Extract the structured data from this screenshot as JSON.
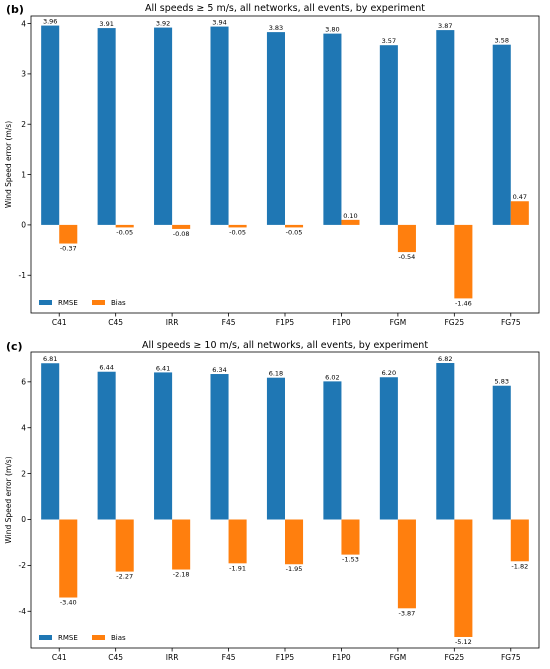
{
  "colors": {
    "rmse": "#1f77b4",
    "bias": "#ff7f0e"
  },
  "chart_data": [
    {
      "type": "bar",
      "panel_label": "(b)",
      "title": "All speeds ≥ 5 m/s, all networks, all events, by experiment",
      "ylabel": "Wind Speed error (m/s)",
      "xlabel": "",
      "categories": [
        "C41",
        "C45",
        "IRR",
        "F45",
        "F1P5",
        "F1P0",
        "FGM",
        "FG25",
        "FG75"
      ],
      "series": [
        {
          "name": "RMSE",
          "values": [
            3.96,
            3.91,
            3.92,
            3.94,
            3.83,
            3.8,
            3.57,
            3.87,
            3.58
          ],
          "labels": [
            "3.96",
            "3.91",
            "3.92",
            "3.94",
            "3.83",
            "3.80",
            "3.57",
            "3.87",
            "3.58"
          ]
        },
        {
          "name": "Bias",
          "values": [
            -0.37,
            -0.05,
            -0.08,
            -0.05,
            -0.05,
            0.1,
            -0.54,
            -1.46,
            0.47
          ],
          "labels": [
            "-0.37",
            "-0.05",
            "-0.08",
            "-0.05",
            "-0.05",
            "0.10",
            "-0.54",
            "-1.46",
            "0.47"
          ]
        }
      ],
      "ylim": [
        -1.75,
        4.15
      ],
      "yticks": [
        -1,
        0,
        1,
        2,
        3,
        4
      ],
      "legend": "lower-left",
      "grid": false
    },
    {
      "type": "bar",
      "panel_label": "(c)",
      "title": "All speeds ≥ 10 m/s, all networks, all events, by experiment",
      "ylabel": "Wind Speed error (m/s)",
      "xlabel": "",
      "categories": [
        "C41",
        "C45",
        "IRR",
        "F45",
        "F1P5",
        "F1P0",
        "FGM",
        "FG25",
        "FG75"
      ],
      "series": [
        {
          "name": "RMSE",
          "values": [
            6.81,
            6.44,
            6.41,
            6.34,
            6.18,
            6.02,
            6.2,
            6.82,
            5.83
          ],
          "labels": [
            "6.81",
            "6.44",
            "6.41",
            "6.34",
            "6.18",
            "6.02",
            "6.20",
            "6.82",
            "5.83"
          ]
        },
        {
          "name": "Bias",
          "values": [
            -3.4,
            -2.27,
            -2.18,
            -1.91,
            -1.95,
            -1.53,
            -3.87,
            -5.12,
            -1.82
          ],
          "labels": [
            "-3.40",
            "-2.27",
            "-2.18",
            "-1.91",
            "-1.95",
            "-1.53",
            "-3.87",
            "-5.12",
            "-1.82"
          ]
        }
      ],
      "ylim": [
        -5.6,
        7.3
      ],
      "yticks": [
        -4,
        -2,
        0,
        2,
        4,
        6
      ],
      "legend": "lower-left",
      "grid": false
    }
  ]
}
